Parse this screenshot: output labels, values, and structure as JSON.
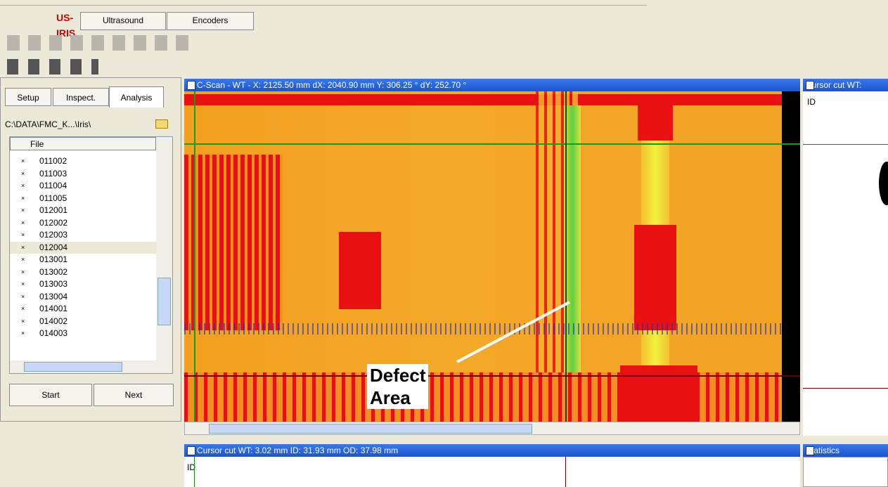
{
  "menu_tabs": [
    "US-IRIS",
    "Ultrasound",
    "Encoders"
  ],
  "left_panel": {
    "tabs": [
      "Setup",
      "Inspect.",
      "Analysis"
    ],
    "path": "C:\\DATA\\FMC_K...\\Iris\\",
    "column": "File",
    "files": [
      "011002",
      "011003",
      "011004",
      "011005",
      "012001",
      "012002",
      "012003",
      "012004",
      "013001",
      "013002",
      "013003",
      "013004",
      "014001",
      "014002",
      "014003"
    ],
    "buttons": [
      "Start",
      "Next"
    ]
  },
  "cscan": {
    "title": "C-Scan - WT -  X: 2125.50 mm  dX: 2040.90 mm    Y: 306.25 °  dY: 252.70 °",
    "annotation": [
      "Defect",
      "Area"
    ]
  },
  "cursor_cut_right": {
    "title": "Cursor cut  WT:",
    "label": "ID"
  },
  "cursor_cut_bottom": {
    "title": "Cursor cut  WT: 3.02 mm  ID: 31.93 mm  OD: 37.98 mm",
    "label": "ID"
  },
  "statistics": {
    "title": "Statistics"
  }
}
